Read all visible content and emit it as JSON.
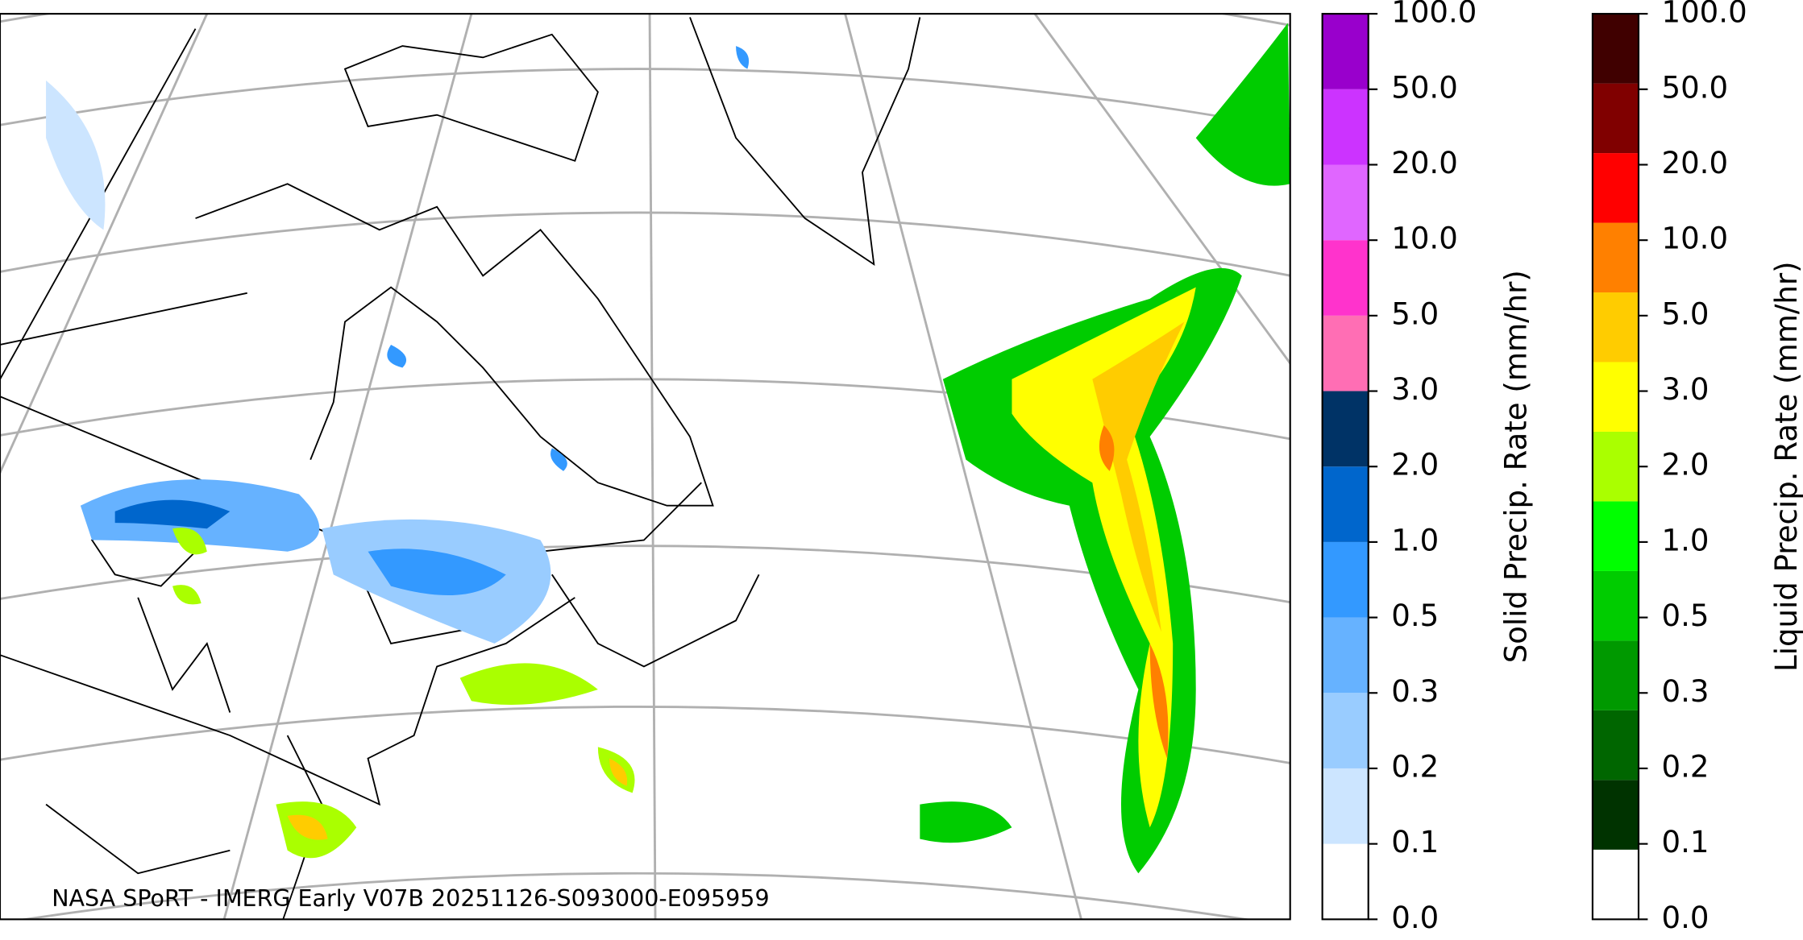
{
  "caption": "NASA SPoRT - IMERG Early V07B 20251126-S093000-E095959",
  "colorbars": [
    {
      "label": "Solid Precip. Rate (mm/hr)",
      "colors": [
        "#ffffff",
        "#cce5ff",
        "#99ccff",
        "#66b2ff",
        "#3399ff",
        "#0066cc",
        "#003366",
        "#ff6eb4",
        "#ff33cc",
        "#e066ff",
        "#cc33ff",
        "#9900cc"
      ],
      "ticks": [
        {
          "value": 0,
          "label": "0.0"
        },
        {
          "value": 0.1,
          "label": "0.1"
        },
        {
          "value": 0.2,
          "label": "0.2"
        },
        {
          "value": 0.3,
          "label": "0.3"
        },
        {
          "value": 0.5,
          "label": "0.5"
        },
        {
          "value": 1,
          "label": "1.0"
        },
        {
          "value": 2,
          "label": "2.0"
        },
        {
          "value": 3,
          "label": "3.0"
        },
        {
          "value": 5,
          "label": "5.0"
        },
        {
          "value": 10,
          "label": "10.0"
        },
        {
          "value": 20,
          "label": "20.0"
        },
        {
          "value": 50,
          "label": "50.0"
        },
        {
          "value": 100,
          "label": "100.0"
        }
      ]
    },
    {
      "label": "Liquid Precip. Rate (mm/hr)",
      "colors": [
        "#ffffff",
        "#003300",
        "#006600",
        "#009900",
        "#00cc00",
        "#00ff00",
        "#aaff00",
        "#ffff00",
        "#ffcc00",
        "#ff8000",
        "#ff0000",
        "#800000",
        "#400000"
      ],
      "ticks": [
        {
          "value": 0,
          "label": "0.0"
        },
        {
          "value": 0.1,
          "label": "0.1"
        },
        {
          "value": 0.2,
          "label": "0.2"
        },
        {
          "value": 0.3,
          "label": "0.3"
        },
        {
          "value": 0.5,
          "label": "0.5"
        },
        {
          "value": 1,
          "label": "1.0"
        },
        {
          "value": 2,
          "label": "2.0"
        },
        {
          "value": 3,
          "label": "3.0"
        },
        {
          "value": 5,
          "label": "5.0"
        },
        {
          "value": 10,
          "label": "10.0"
        },
        {
          "value": 20,
          "label": "20.0"
        },
        {
          "value": 50,
          "label": "50.0"
        },
        {
          "value": 100,
          "label": "100.0"
        }
      ]
    }
  ]
}
